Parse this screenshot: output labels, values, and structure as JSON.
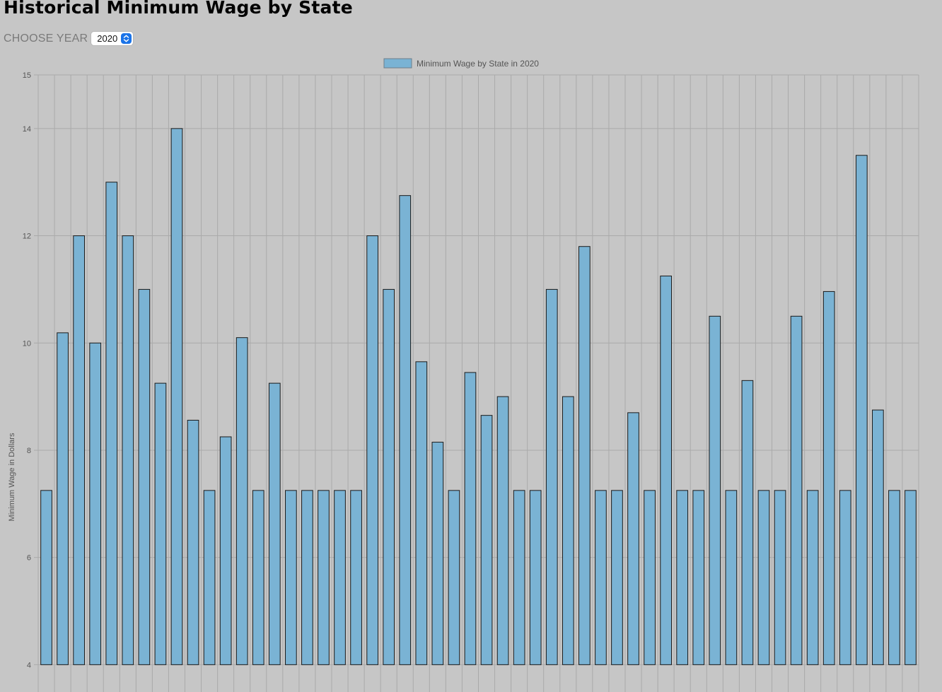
{
  "page": {
    "title": "Historical Minimum Wage by State"
  },
  "controls": {
    "year_label": "CHOOSE YEAR",
    "year_value": "2020"
  },
  "colors": {
    "background": "#c6c6c6",
    "bar_fill": "#7ab3d4",
    "bar_stroke": "#1a1a1a",
    "grid": "#aaaaaa",
    "select_arrows": "#1a73e8"
  },
  "chart_data": {
    "type": "bar",
    "legend_label": "Minimum Wage by State in 2020",
    "legend_position": "top-center",
    "ylabel": "Minimum Wage in Dollars",
    "xlabel": "",
    "ylim": [
      4,
      15
    ],
    "y_ticks": [
      4,
      6,
      8,
      10,
      12,
      14,
      15
    ],
    "grid": true,
    "values": [
      7.25,
      10.19,
      12,
      10,
      13,
      12,
      11,
      9.25,
      14,
      8.56,
      7.25,
      8.25,
      10.1,
      7.25,
      9.25,
      7.25,
      7.25,
      7.25,
      7.25,
      7.25,
      12,
      11,
      12.75,
      9.65,
      8.15,
      7.25,
      9.45,
      8.65,
      9,
      7.25,
      7.25,
      11,
      9,
      11.8,
      7.25,
      7.25,
      8.7,
      7.25,
      11.25,
      7.25,
      7.25,
      10.5,
      7.25,
      9.3,
      7.25,
      7.25,
      10.5,
      7.25,
      10.96,
      7.25,
      13.5,
      8.75,
      7.25,
      7.25
    ]
  }
}
